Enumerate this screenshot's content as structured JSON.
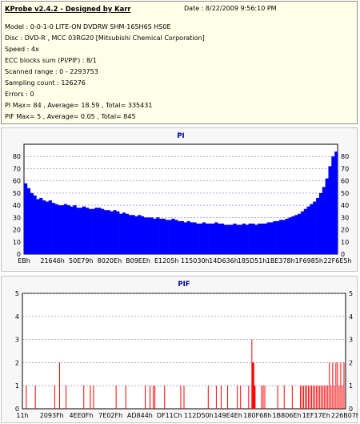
{
  "header": {
    "title": "KProbe v2.4.2 - Designed by Karr",
    "date": "Date : 8/22/2009 9:56:10 PM"
  },
  "info": [
    "Model : 0-0-1-0 LITE-ON DVDRW SHM-165H6S HS0E",
    "Disc : DVD-R , MCC 03RG20  [Mitsubishi Chemical Corporation]",
    "Speed : 4x",
    "ECC blocks sum (PI/PIF) : 8/1",
    "Scanned range : 0 - 2293753",
    "Sampling count : 126276",
    "Errors : 0",
    "PI Max= 84 , Average= 18.59 , Total= 335431",
    "PIF Max= 5 , Average= 0.05 , Total= 845"
  ],
  "colors": {
    "pi_bar": "#0000ff",
    "pif_bar": "#ff0000",
    "grid": "#7878c8",
    "plot_bg": "#ffffff",
    "panel_bg": "#f7f7f7",
    "info_bg": "#ffffe8"
  },
  "chart_data": [
    {
      "type": "bar",
      "title": "PI",
      "ylim": [
        0,
        90
      ],
      "yticks": [
        0,
        10,
        20,
        30,
        40,
        50,
        60,
        70,
        80
      ],
      "grid": true,
      "xlabels": [
        "EBh",
        "21646h",
        "50E79h",
        "8020Eh",
        "B09EEh",
        "E1205h",
        "115030h",
        "14D636h",
        "185D51h",
        "1BE378h",
        "1F6985h",
        "22F6E5h"
      ],
      "values": [
        58,
        54,
        50,
        48,
        45,
        46,
        44,
        43,
        44,
        42,
        41,
        40,
        40,
        41,
        40,
        39,
        40,
        38,
        38,
        39,
        38,
        37,
        37,
        38,
        38,
        37,
        36,
        36,
        35,
        36,
        35,
        33,
        34,
        33,
        32,
        32,
        31,
        32,
        31,
        30,
        30,
        30,
        29,
        30,
        29,
        29,
        28,
        28,
        29,
        28,
        27,
        27,
        26,
        27,
        26,
        26,
        25,
        25,
        26,
        25,
        25,
        25,
        26,
        25,
        25,
        24,
        24,
        24,
        25,
        24,
        24,
        25,
        24,
        25,
        25,
        24,
        25,
        25,
        25,
        26,
        26,
        27,
        27,
        28,
        28,
        29,
        30,
        31,
        32,
        33,
        35,
        37,
        39,
        41,
        43,
        46,
        50,
        55,
        62,
        72,
        80,
        84
      ]
    },
    {
      "type": "bar",
      "title": "PIF",
      "ylim": [
        0,
        5
      ],
      "yticks": [
        0,
        1,
        2,
        3,
        4,
        5
      ],
      "grid": true,
      "xlabels": [
        "11h",
        "2093Fh",
        "4EE0Fh",
        "7E02Fh",
        "AD844h",
        "DF11Ch",
        "112D50h",
        "149E4Eh",
        "180F68h",
        "1B806Eh",
        "1EF17Eh",
        "226B07h"
      ],
      "spikes": [
        [
          0.012,
          1
        ],
        [
          0.04,
          1
        ],
        [
          0.1,
          1
        ],
        [
          0.115,
          2
        ],
        [
          0.135,
          1
        ],
        [
          0.19,
          1
        ],
        [
          0.21,
          1
        ],
        [
          0.22,
          1
        ],
        [
          0.29,
          1
        ],
        [
          0.32,
          1
        ],
        [
          0.38,
          1
        ],
        [
          0.395,
          1
        ],
        [
          0.405,
          1
        ],
        [
          0.41,
          1
        ],
        [
          0.44,
          1
        ],
        [
          0.49,
          1
        ],
        [
          0.5,
          1
        ],
        [
          0.575,
          1
        ],
        [
          0.6,
          1
        ],
        [
          0.615,
          1
        ],
        [
          0.635,
          1
        ],
        [
          0.665,
          1
        ],
        [
          0.675,
          1
        ],
        [
          0.7,
          1
        ],
        [
          0.71,
          3
        ],
        [
          0.712,
          2
        ],
        [
          0.714,
          2
        ],
        [
          0.716,
          2
        ],
        [
          0.718,
          1
        ],
        [
          0.72,
          1
        ],
        [
          0.74,
          1
        ],
        [
          0.745,
          1
        ],
        [
          0.75,
          1
        ],
        [
          0.79,
          1
        ],
        [
          0.81,
          1
        ],
        [
          0.835,
          1
        ],
        [
          0.86,
          1
        ],
        [
          0.865,
          1
        ],
        [
          0.87,
          1
        ],
        [
          0.875,
          1
        ],
        [
          0.88,
          1
        ],
        [
          0.885,
          1
        ],
        [
          0.89,
          1
        ],
        [
          0.895,
          1
        ],
        [
          0.9,
          1
        ],
        [
          0.905,
          1
        ],
        [
          0.91,
          1
        ],
        [
          0.915,
          1
        ],
        [
          0.92,
          1
        ],
        [
          0.925,
          1
        ],
        [
          0.93,
          1
        ],
        [
          0.935,
          1
        ],
        [
          0.94,
          1
        ],
        [
          0.945,
          1
        ],
        [
          0.95,
          2
        ],
        [
          0.955,
          1
        ],
        [
          0.96,
          2
        ],
        [
          0.965,
          1
        ],
        [
          0.97,
          2
        ],
        [
          0.975,
          2
        ],
        [
          0.98,
          1
        ],
        [
          0.985,
          2
        ],
        [
          0.99,
          1
        ],
        [
          0.995,
          2
        ]
      ]
    }
  ]
}
